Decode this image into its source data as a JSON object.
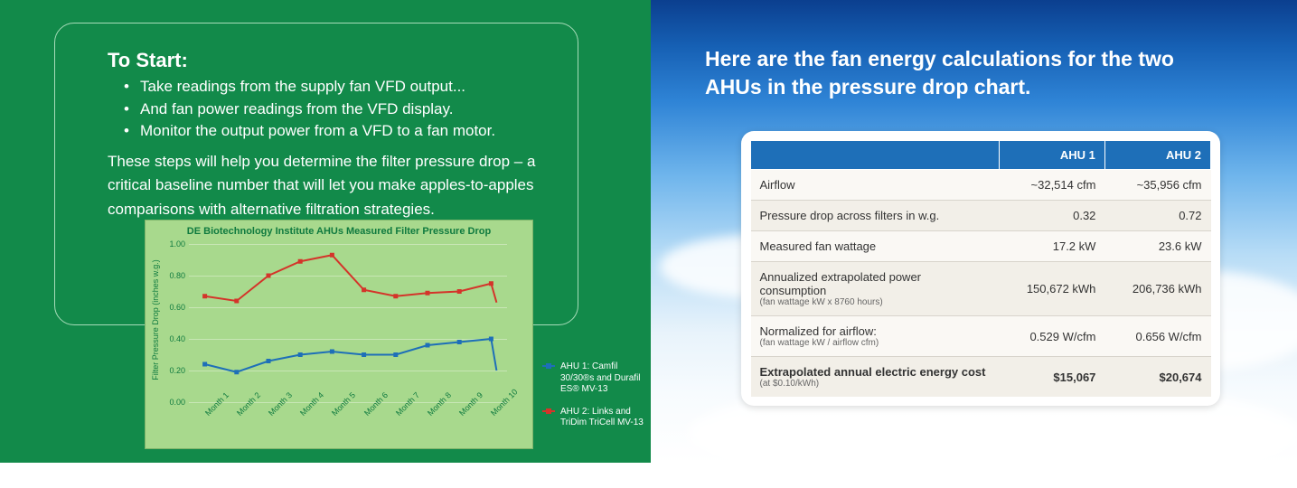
{
  "left": {
    "heading": "To Start:",
    "bullets": [
      "Take readings from the supply fan VFD output...",
      "And fan power readings from the VFD display.",
      "Monitor the output power from a VFD to a fan motor."
    ],
    "followup": "These steps will help you determine the filter pressure drop – a critical baseline number that will let you make apples-to-apples comparisons with alternative filtration strategies.",
    "chart": {
      "type": "line",
      "title": "DE Biotechnology Institute AHUs Measured Filter Pressure Drop",
      "y_label": "Filter Pressure Drop (inches w.g.)",
      "ylim": [
        0.0,
        1.0
      ],
      "ytick_step": 0.2,
      "y_ticks": [
        "0.00",
        "0.20",
        "0.40",
        "0.60",
        "0.80",
        "1.00"
      ],
      "categories": [
        "Month 1",
        "Month 2",
        "Month 3",
        "Month 4",
        "Month 5",
        "Month 6",
        "Month 7",
        "Month 8",
        "Month 9",
        "Month 10"
      ],
      "series": [
        {
          "name": "AHU 1: Camfil 30/30®s and Durafil ES® MV-13",
          "color": "#1e6fb8",
          "marker": "square",
          "values": [
            0.24,
            0.19,
            0.26,
            0.3,
            0.32,
            0.3,
            0.3,
            0.36,
            0.38,
            0.4
          ]
        },
        {
          "name": "AHU 2: Links and TriDim TriCell MV-13",
          "color": "#d4342a",
          "marker": "square",
          "values": [
            0.67,
            0.64,
            0.8,
            0.89,
            0.93,
            0.71,
            0.67,
            0.69,
            0.7,
            0.75
          ]
        }
      ],
      "series1_last_drop": 0.2,
      "series2_last_drop": 0.63,
      "background_color": "#a8d98d",
      "grid_color": "#c8e6b5",
      "title_fontsize": 11,
      "label_fontsize": 9,
      "line_width": 2,
      "marker_size": 5
    }
  },
  "right": {
    "heading": "Here are the fan energy calculations for the two AHUs in the pressure drop chart.",
    "table": {
      "columns": [
        "",
        "AHU 1",
        "AHU 2"
      ],
      "rows": [
        {
          "label": "Airflow",
          "sub": "",
          "ahu1": "~32,514 cfm",
          "ahu2": "~35,956 cfm",
          "bold": false
        },
        {
          "label": "Pressure drop across filters in w.g.",
          "sub": "",
          "ahu1": "0.32",
          "ahu2": "0.72",
          "bold": false
        },
        {
          "label": "Measured fan wattage",
          "sub": "",
          "ahu1": "17.2 kW",
          "ahu2": "23.6 kW",
          "bold": false
        },
        {
          "label": "Annualized extrapolated power consumption",
          "sub": "(fan wattage kW x 8760 hours)",
          "ahu1": "150,672 kWh",
          "ahu2": "206,736 kWh",
          "bold": false
        },
        {
          "label": "Normalized for airflow:",
          "sub": "(fan wattage kW / airflow cfm)",
          "ahu1": "0.529 W/cfm",
          "ahu2": "0.656 W/cfm",
          "bold": false
        },
        {
          "label": "Extrapolated annual electric energy cost",
          "sub": "(at $0.10/kWh)",
          "ahu1": "$15,067",
          "ahu2": "$20,674",
          "bold": true
        }
      ],
      "header_bg": "#1e6fb8",
      "header_color": "#ffffff",
      "row_alt_bg": "#f2efe8",
      "row_bg": "#faf8f4",
      "border_color": "#d8d4cc"
    }
  }
}
